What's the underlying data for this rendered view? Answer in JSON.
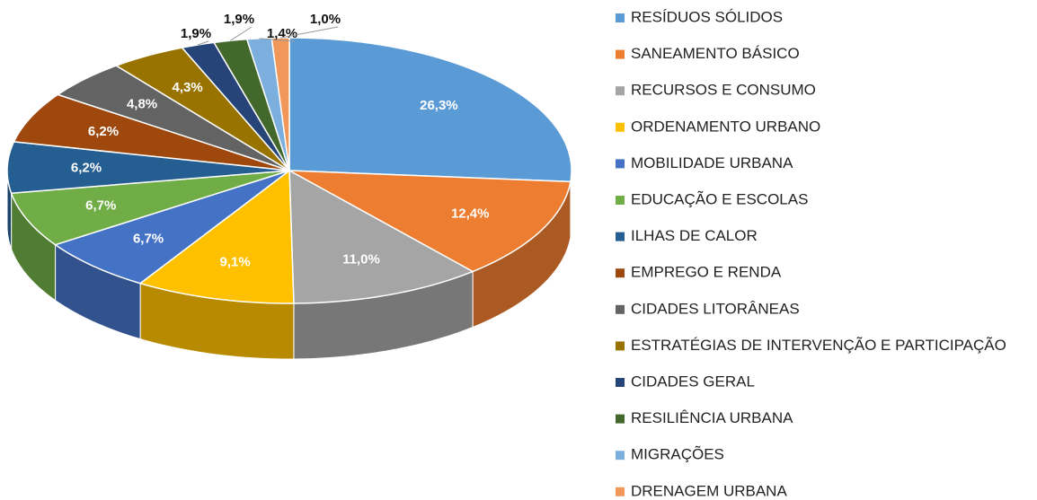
{
  "chart_data": {
    "type": "pie",
    "categories": [
      "RESÍDUOS SÓLIDOS",
      "SANEAMENTO BÁSICO",
      "RECURSOS E CONSUMO",
      "ORDENAMENTO URBANO",
      "MOBILIDADE URBANA",
      "EDUCAÇÃO E ESCOLAS",
      "ILHAS DE CALOR",
      "EMPREGO E RENDA",
      "CIDADES LITORÂNEAS",
      "ESTRATÉGIAS DE INTERVENÇÃO E PARTICIPAÇÃO",
      "CIDADES GERAL",
      "RESILIÊNCIA URBANA",
      "MIGRAÇÕES",
      "DRENAGEM URBANA"
    ],
    "values": [
      26.3,
      12.4,
      11.0,
      9.1,
      6.7,
      6.7,
      6.2,
      6.2,
      4.8,
      4.3,
      1.9,
      1.9,
      1.4,
      1.0
    ],
    "value_labels": [
      "26,3%",
      "12,4%",
      "11,0%",
      "9,1%",
      "6,7%",
      "6,7%",
      "6,2%",
      "6,2%",
      "4,8%",
      "4,3%",
      "1,9%",
      "1,9%",
      "1,4%",
      "1,0%"
    ],
    "colors": [
      "#5b9bd5",
      "#ed7d31",
      "#a5a5a5",
      "#ffc000",
      "#4472c4",
      "#70ad47",
      "#255e91",
      "#9e480e",
      "#636363",
      "#997300",
      "#264478",
      "#43682b",
      "#7cafdd",
      "#f1975a"
    ],
    "legend": "right"
  }
}
